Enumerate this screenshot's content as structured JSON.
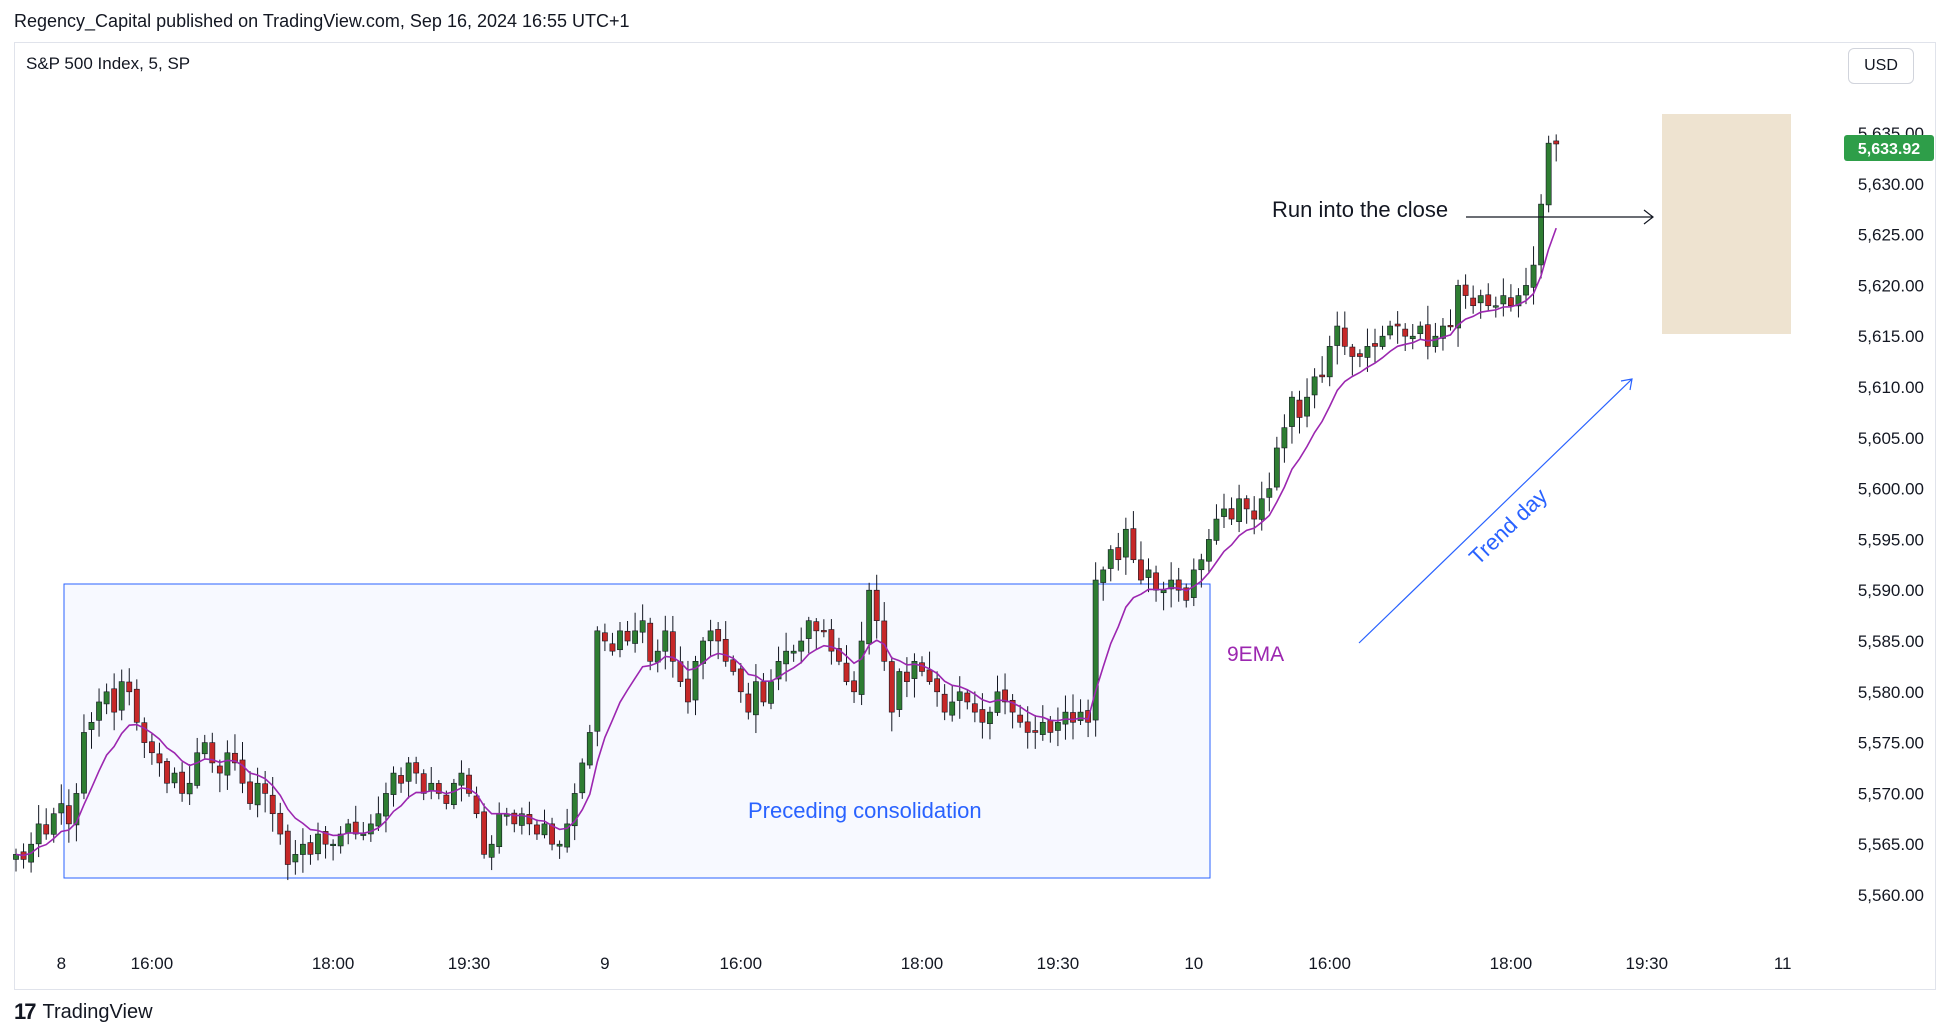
{
  "header": {
    "publisher": "Regency_Capital published on TradingView.com, Sep 16, 2024 16:55 UTC+1"
  },
  "symbol": {
    "label": "S&P 500 Index, 5, SP"
  },
  "currency": {
    "label": "USD"
  },
  "footer": {
    "brand": "TradingView",
    "logo_glyph": "17"
  },
  "colors": {
    "up": "#26a69a",
    "up_fill": "#2e7d32",
    "down": "#c62828",
    "ema": "#9c27b0",
    "box_blue": "#2962ff",
    "box_tan": "#e8d9c0",
    "last_price_bg": "#2e9e49"
  },
  "chart_data": {
    "type": "candlestick",
    "ylim": [
      5558,
      5637
    ],
    "y_ticks": [
      "5,560.00",
      "5,565.00",
      "5,570.00",
      "5,575.00",
      "5,580.00",
      "5,585.00",
      "5,590.00",
      "5,595.00",
      "5,600.00",
      "5,605.00",
      "5,610.00",
      "5,615.00",
      "5,620.00",
      "5,625.00",
      "5,630.00",
      "5,635.00"
    ],
    "y_tick_values": [
      5560,
      5565,
      5570,
      5575,
      5580,
      5585,
      5590,
      5595,
      5600,
      5605,
      5610,
      5615,
      5620,
      5625,
      5630,
      5635
    ],
    "x_ticks": [
      {
        "label": "8",
        "bar": 6
      },
      {
        "label": "16:00",
        "bar": 18
      },
      {
        "label": "18:00",
        "bar": 42
      },
      {
        "label": "19:30",
        "bar": 60
      },
      {
        "label": "9",
        "bar": 78
      },
      {
        "label": "16:00",
        "bar": 96
      },
      {
        "label": "18:00",
        "bar": 120
      },
      {
        "label": "19:30",
        "bar": 138
      },
      {
        "label": "10",
        "bar": 156
      },
      {
        "label": "16:00",
        "bar": 174
      },
      {
        "label": "18:00",
        "bar": 198
      },
      {
        "label": "19:30",
        "bar": 216
      },
      {
        "label": "11",
        "bar": 234
      }
    ],
    "last_price": "5,633.92",
    "last_price_value": 5633.92,
    "closes": [
      5564,
      5563.5,
      5565,
      5567,
      5566,
      5568,
      5569,
      5567,
      5570,
      5576,
      5577,
      5579,
      5580,
      5578,
      5581,
      5580,
      5577,
      5575,
      5574,
      5573,
      5571,
      5572,
      5570,
      5571,
      5574,
      5575,
      5573,
      5572,
      5574,
      5573,
      5571,
      5569,
      5571,
      5570,
      5568,
      5566,
      5563,
      5564,
      5565,
      5564,
      5566,
      5565,
      5565,
      5566,
      5567,
      5566,
      5566,
      5567,
      5568,
      5570,
      5572,
      5571,
      5573,
      5572,
      5570,
      5571,
      5570,
      5569,
      5571,
      5572,
      5570,
      5568,
      5564,
      5565,
      5568,
      5568,
      5567,
      5568,
      5567,
      5566,
      5567,
      5565,
      5565,
      5567,
      5570,
      5573,
      5576,
      5586,
      5585,
      5584,
      5586,
      5585,
      5586,
      5587,
      5583,
      5584,
      5586,
      5583,
      5581,
      5579,
      5583,
      5585,
      5586,
      5585,
      5583,
      5582,
      5580,
      5578,
      5581,
      5579,
      5581,
      5583,
      5584,
      5584,
      5585,
      5587,
      5586,
      5586,
      5584,
      5583,
      5581,
      5580,
      5585,
      5590,
      5587,
      5583,
      5578,
      5582,
      5581,
      5583,
      5582,
      5581,
      5580,
      5578,
      5579,
      5580,
      5579,
      5578,
      5577,
      5578,
      5580,
      5579,
      5578,
      5577,
      5576,
      5576,
      5577,
      5576,
      5577,
      5578,
      5577,
      5578,
      5577,
      5591,
      5592,
      5594,
      5593,
      5596,
      5593,
      5591,
      5592,
      5590,
      5590,
      5591,
      5590,
      5589,
      5592,
      5593,
      5595,
      5597,
      5598,
      5597,
      5599,
      5598,
      5597,
      5599,
      5600,
      5604,
      5606,
      5609,
      5607,
      5609,
      5611,
      5611,
      5614,
      5616,
      5614,
      5613,
      5613,
      5614,
      5614,
      5615,
      5616,
      5616,
      5615,
      5615,
      5616,
      5614,
      5615,
      5616,
      5616,
      5620,
      5619,
      5618,
      5619,
      5618,
      5618,
      5619,
      5618,
      5619,
      5620,
      5622,
      5628,
      5634,
      5633.92
    ]
  },
  "annotations": {
    "run_into_close": "Run into the close",
    "ema_label": "9EMA",
    "trend_day": "Trend day",
    "consolidation": "Preceding consolidation"
  }
}
